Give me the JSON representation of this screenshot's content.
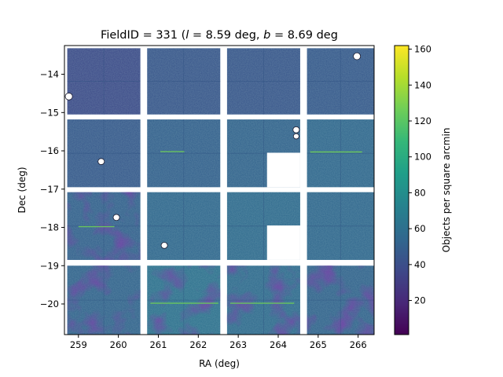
{
  "chart_data": {
    "type": "heatmap",
    "title": {
      "prefix": "FieldID = 331 (",
      "l_symbol": "l",
      "l_value": " = 8.59 deg, ",
      "b_symbol": "b",
      "b_value": " = 8.69 deg"
    },
    "xlabel": "RA (deg)",
    "ylabel": "Dec (deg)",
    "xlim": [
      258.65,
      266.4
    ],
    "ylim": [
      -20.8,
      -13.25
    ],
    "x_direction": "increasing-right",
    "xticks": [
      259,
      260,
      261,
      262,
      263,
      264,
      265,
      266
    ],
    "yticks": [
      -14,
      -15,
      -16,
      -17,
      -18,
      -19,
      -20
    ],
    "xtick_labels": [
      "259",
      "260",
      "261",
      "262",
      "263",
      "264",
      "265",
      "266"
    ],
    "ytick_labels": [
      "−14",
      "−15",
      "−16",
      "−17",
      "−18",
      "−19",
      "−20"
    ],
    "colorbar": {
      "label": "Objects per square arcmin",
      "colormap": "viridis",
      "range": [
        1,
        162
      ],
      "ticks": [
        20,
        40,
        60,
        80,
        100,
        120,
        140,
        160
      ],
      "tick_labels": [
        "20",
        "40",
        "60",
        "80",
        "100",
        "120",
        "140",
        "160"
      ]
    },
    "cmap_stops": [
      "#440154",
      "#482878",
      "#3e4989",
      "#31688e",
      "#26828e",
      "#1f9e89",
      "#35b779",
      "#6ece58",
      "#b5de2b",
      "#fde725"
    ],
    "ccd_grid": {
      "columns": [
        [
          258.72,
          260.55
        ],
        [
          260.72,
          262.55
        ],
        [
          262.72,
          264.55
        ],
        [
          264.72,
          266.4
        ]
      ],
      "rows": [
        [
          -13.32,
          -15.05
        ],
        [
          -15.18,
          -16.95
        ],
        [
          -17.08,
          -18.85
        ],
        [
          -19.0,
          -20.8
        ]
      ],
      "cell_mean_density": [
        [
          38,
          44,
          44,
          46
        ],
        [
          46,
          50,
          52,
          54
        ],
        [
          50,
          54,
          56,
          54
        ],
        [
          52,
          60,
          56,
          52
        ]
      ]
    },
    "masked_regions": [
      {
        "kind": "circle",
        "ra": 258.76,
        "dec": -14.58,
        "r": 0.09
      },
      {
        "kind": "circle",
        "ra": 265.97,
        "dec": -13.53,
        "r": 0.09
      },
      {
        "kind": "circle",
        "ra": 259.57,
        "dec": -16.28,
        "r": 0.08
      },
      {
        "kind": "circle",
        "ra": 259.95,
        "dec": -17.74,
        "r": 0.08
      },
      {
        "kind": "circle",
        "ra": 261.15,
        "dec": -18.47,
        "r": 0.08
      },
      {
        "kind": "circle",
        "ra": 264.45,
        "dec": -15.45,
        "r": 0.08
      },
      {
        "kind": "circle",
        "ra": 264.45,
        "dec": -15.62,
        "r": 0.07
      },
      {
        "kind": "rect",
        "ra": [
          263.72,
          264.55
        ],
        "dec": [
          -16.05,
          -16.95
        ]
      },
      {
        "kind": "rect",
        "ra": [
          263.72,
          264.55
        ],
        "dec": [
          -17.95,
          -18.85
        ]
      }
    ],
    "streaks": [
      {
        "ra": [
          261.05,
          261.65
        ],
        "dec": -16.02
      },
      {
        "ra": [
          264.8,
          266.1
        ],
        "dec": -16.03
      },
      {
        "ra": [
          259.0,
          259.9
        ],
        "dec": -17.98
      },
      {
        "ra": [
          260.8,
          262.5
        ],
        "dec": -19.98
      },
      {
        "ra": [
          262.8,
          264.4
        ],
        "dec": -19.98
      }
    ]
  }
}
